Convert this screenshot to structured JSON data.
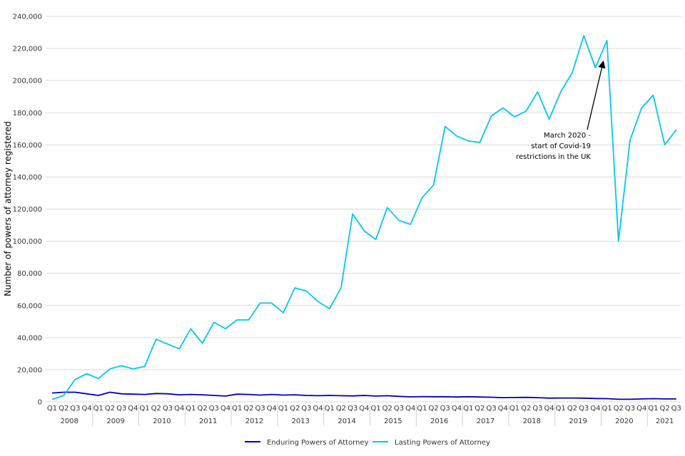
{
  "chart_data": {
    "type": "line",
    "ylabel": "Number of powers of attorney registered",
    "ylim": [
      0,
      240000
    ],
    "yticks": [
      0,
      20000,
      40000,
      60000,
      80000,
      100000,
      120000,
      140000,
      160000,
      180000,
      200000,
      220000,
      240000
    ],
    "ytick_labels": [
      "0",
      "20,000",
      "40,000",
      "60,000",
      "80,000",
      "100,000",
      "120,000",
      "140,000",
      "160,000",
      "180,000",
      "200,000",
      "220,000",
      "240,000"
    ],
    "grid": true,
    "legend_position": "bottom",
    "quarters": [
      "Q1",
      "Q2",
      "Q3",
      "Q4",
      "Q1",
      "Q2",
      "Q3",
      "Q4",
      "Q1",
      "Q2",
      "Q3",
      "Q4",
      "Q1",
      "Q2",
      "Q3",
      "Q4",
      "Q1",
      "Q2",
      "Q3",
      "Q4",
      "Q1",
      "Q2",
      "Q3",
      "Q4",
      "Q1",
      "Q2",
      "Q3",
      "Q4",
      "Q1",
      "Q2",
      "Q3",
      "Q4",
      "Q1",
      "Q2",
      "Q3",
      "Q4",
      "Q1",
      "Q2",
      "Q3",
      "Q4",
      "Q1",
      "Q2",
      "Q3",
      "Q4",
      "Q1",
      "Q2",
      "Q3",
      "Q4",
      "Q1",
      "Q2",
      "Q3",
      "Q4",
      "Q1",
      "Q2",
      "Q3"
    ],
    "years": [
      {
        "label": "2008",
        "count": 4
      },
      {
        "label": "2009",
        "count": 4
      },
      {
        "label": "2010",
        "count": 4
      },
      {
        "label": "2011",
        "count": 4
      },
      {
        "label": "2012",
        "count": 4
      },
      {
        "label": "2013",
        "count": 4
      },
      {
        "label": "2014",
        "count": 4
      },
      {
        "label": "2015",
        "count": 4
      },
      {
        "label": "2016",
        "count": 4
      },
      {
        "label": "2017",
        "count": 4
      },
      {
        "label": "2018",
        "count": 4
      },
      {
        "label": "2019",
        "count": 4
      },
      {
        "label": "2020",
        "count": 4
      },
      {
        "label": "2021",
        "count": 3
      }
    ],
    "series": [
      {
        "name": "Enduring Powers of Attorney",
        "color": "#0000b4",
        "values": [
          5500,
          6000,
          6000,
          5000,
          4000,
          6000,
          5000,
          4800,
          4600,
          5200,
          5000,
          4400,
          4600,
          4400,
          4000,
          3600,
          4800,
          4600,
          4200,
          4600,
          4200,
          4400,
          4000,
          3800,
          4000,
          3800,
          3700,
          4000,
          3600,
          3800,
          3400,
          3100,
          3300,
          3200,
          3200,
          3000,
          3200,
          3000,
          2900,
          2600,
          2700,
          2800,
          2600,
          2300,
          2400,
          2400,
          2300,
          2100,
          2000,
          1600,
          1600,
          1800,
          2000,
          1800,
          1800
        ]
      },
      {
        "name": "Lasting Powers of Attorney",
        "color": "#00c8f0",
        "values": [
          1500,
          4000,
          14000,
          17500,
          14500,
          20500,
          22500,
          20500,
          22000,
          39000,
          36000,
          33000,
          45500,
          36500,
          49500,
          45500,
          51000,
          51000,
          61500,
          61500,
          55500,
          71000,
          69000,
          62500,
          58000,
          71000,
          117000,
          106500,
          101000,
          121000,
          113000,
          110500,
          127000,
          135000,
          171500,
          165500,
          162500,
          161500,
          178000,
          183000,
          177500,
          181000,
          193000,
          176000,
          193000,
          205000,
          228000,
          208000,
          225000,
          100000,
          163000,
          183000,
          191000,
          160000,
          169500
        ]
      }
    ],
    "annotation": {
      "lines": [
        "March 2020 -",
        "start of Covid-19",
        "restrictions in the UK"
      ],
      "target_index": 48,
      "target_value": 212000
    }
  }
}
